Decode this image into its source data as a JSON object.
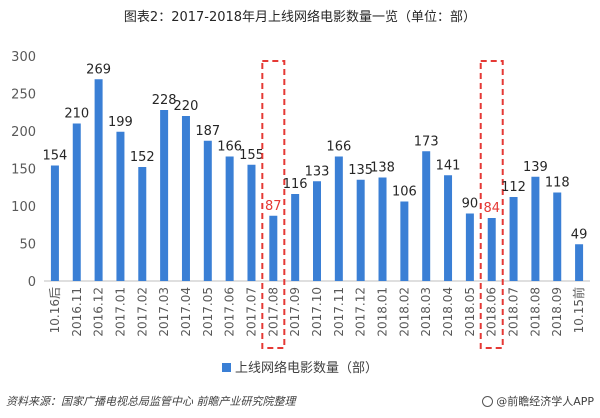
{
  "chart_data": {
    "type": "bar",
    "title": "图表2：2017-2018年月上线网络电影数量一览（单位：部）",
    "categories": [
      "10.16后",
      "2016.11",
      "2016.12",
      "2017.01",
      "2017.02",
      "2017.03",
      "2017.04",
      "2017.05",
      "2017.06",
      "2017.07",
      "2017.08",
      "2017.09",
      "2017.10",
      "2017.11",
      "2017.12",
      "2018.01",
      "2018.02",
      "2018.03",
      "2018.04",
      "2018.05",
      "2018.06",
      "2018.07",
      "2018.08",
      "2018.09",
      "10.15前"
    ],
    "series": [
      {
        "name": "上线网络电影数量（部）",
        "values": [
          154,
          210,
          269,
          199,
          152,
          228,
          220,
          187,
          166,
          155,
          87,
          116,
          133,
          166,
          135,
          138,
          106,
          173,
          141,
          90,
          84,
          112,
          139,
          118,
          49
        ]
      }
    ],
    "ylim": [
      0,
      300
    ],
    "yticks": [
      0,
      50,
      100,
      150,
      200,
      250,
      300
    ],
    "highlighted_categories": [
      "2017.08",
      "2018.06"
    ],
    "xlabel": "",
    "ylabel": "",
    "grid": false,
    "legend_position": "bottom"
  },
  "colors": {
    "bar": "#3a7fd5",
    "highlight": "#e53935",
    "label": "#262626",
    "axis": "#595959"
  },
  "footer": {
    "source": "资料来源：国家广播电视总局监管中心  前瞻产业研究院整理",
    "brand": "@前瞻经济学人APP"
  }
}
